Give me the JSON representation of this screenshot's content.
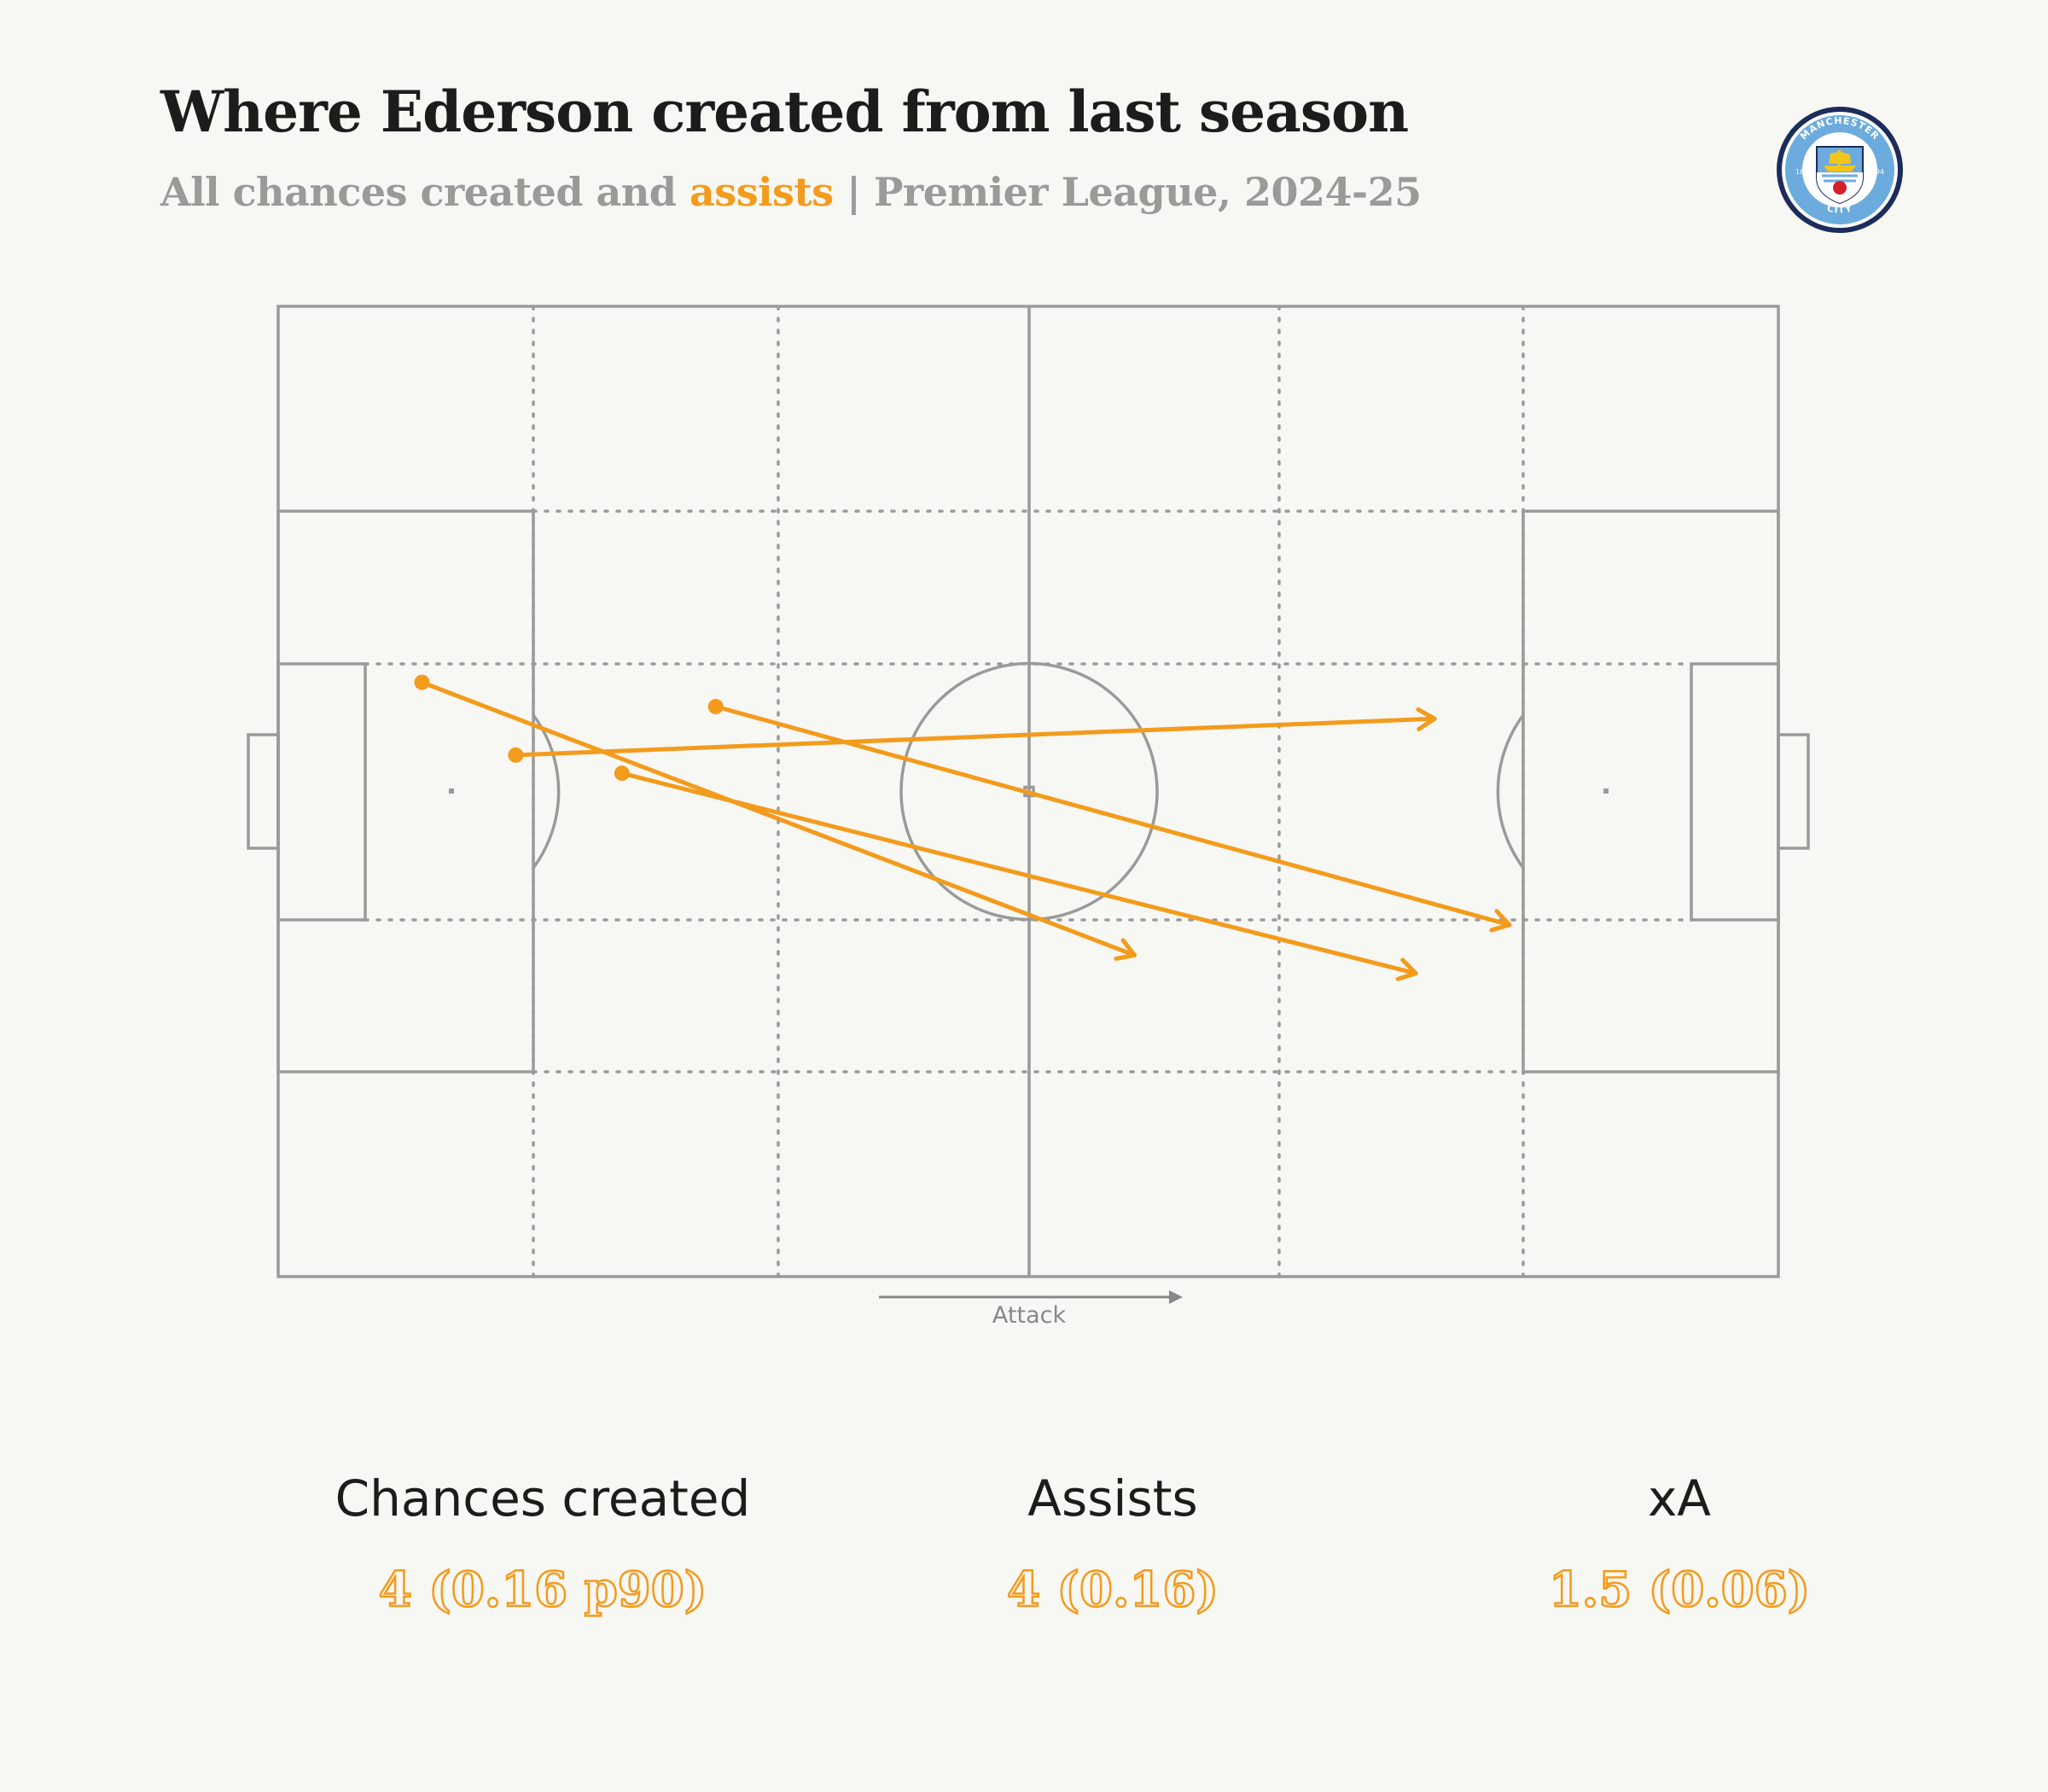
{
  "header": {
    "title": "Where Ederson created from last season",
    "subtitle_prefix": "All chances created and ",
    "subtitle_highlight": "assists",
    "subtitle_suffix": " | Premier League, 2024-25"
  },
  "crest": {
    "ring_text": "MANCHESTER",
    "bottom_text": "CITY",
    "year_left": "18",
    "year_right": "94"
  },
  "colors": {
    "accent": "#f39b1c",
    "pitch_lines": "#9a9a9a",
    "background": "#f7f7f3",
    "crest_navy": "#1c2c5b",
    "crest_blue": "#6cabdd"
  },
  "direction_label": "Attack",
  "chart_data": {
    "type": "pitch-pass-map",
    "pitch_length": 120,
    "pitch_width": 80,
    "attack_direction": "left-to-right",
    "series": [
      {
        "name": "assists",
        "passes": [
          {
            "start": [
              11.5,
              31
            ],
            "end": [
              68.5,
              53.5
            ]
          },
          {
            "start": [
              35,
              33
            ],
            "end": [
              98.5,
              51
            ]
          },
          {
            "start": [
              19,
              37
            ],
            "end": [
              92.5,
              34
            ]
          },
          {
            "start": [
              27.5,
              38.5
            ],
            "end": [
              91,
              55
            ]
          }
        ]
      }
    ]
  },
  "stats": [
    {
      "label": "Chances created",
      "value": "4 (0.16 p90)"
    },
    {
      "label": "Assists",
      "value": "4 (0.16)"
    },
    {
      "label": "xA",
      "value": "1.5 (0.06)"
    }
  ]
}
